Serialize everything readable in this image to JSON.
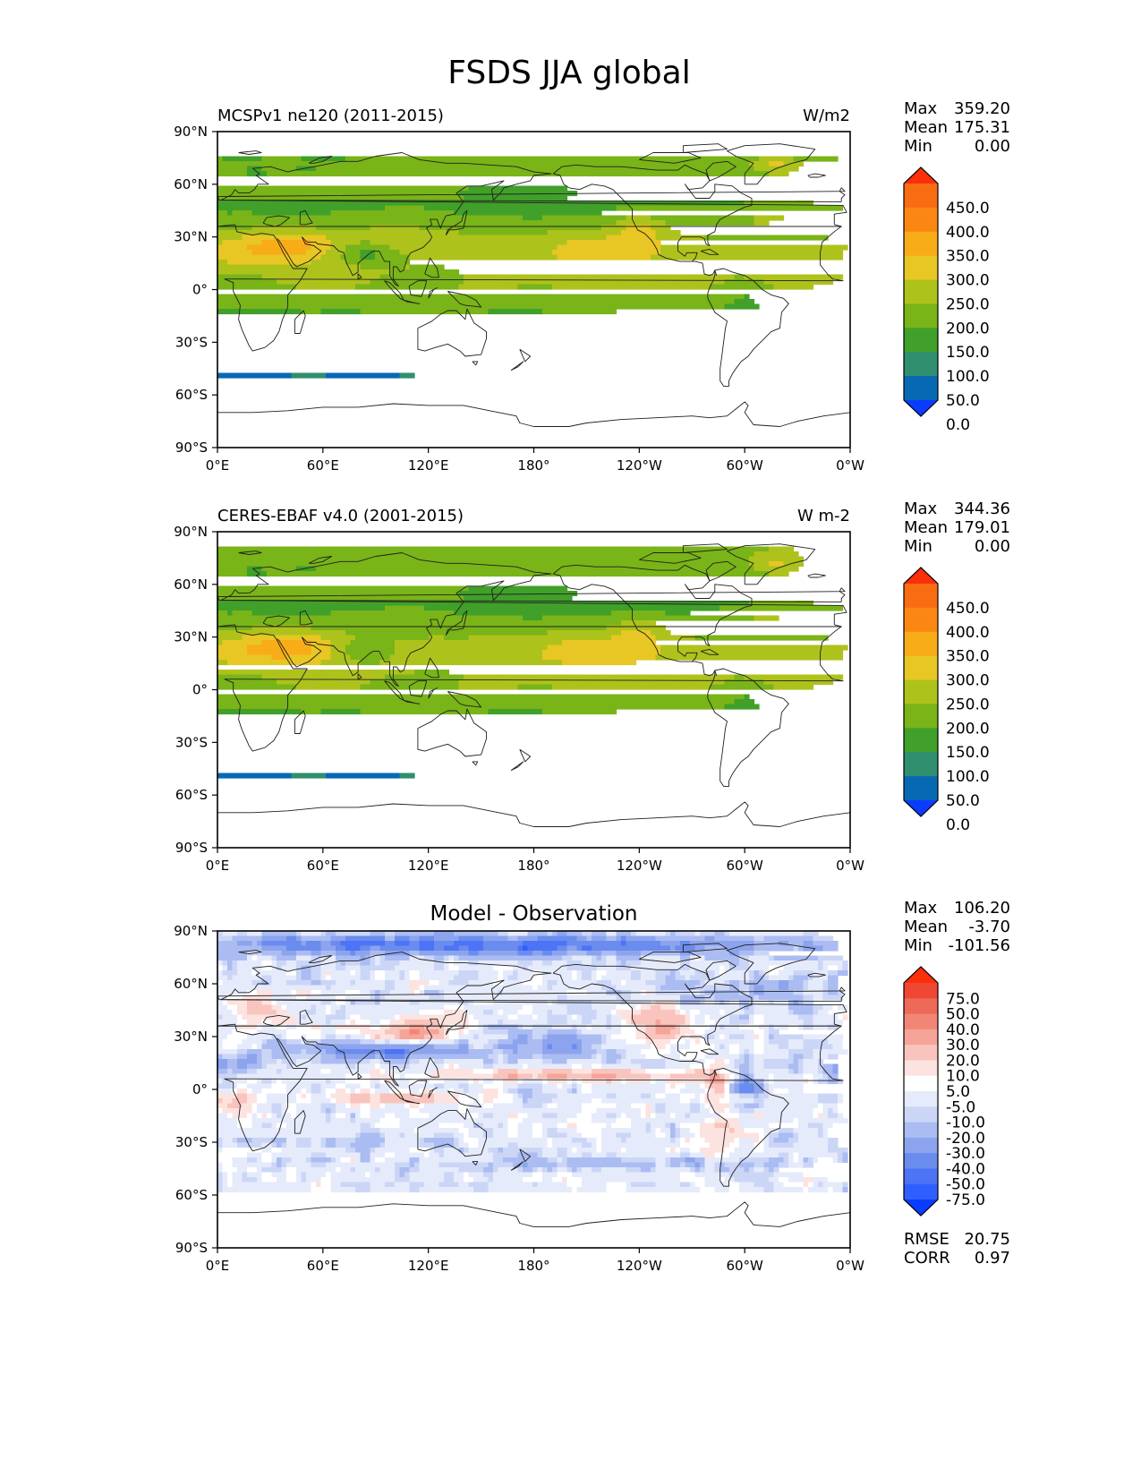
{
  "figure": {
    "title": "FSDS JJA global"
  },
  "colors": {
    "seq": [
      "#0a3cff",
      "#0768b4",
      "#2f8f6f",
      "#40a02a",
      "#79b418",
      "#aec21c",
      "#e8c623",
      "#f8ac18",
      "#fb8712",
      "#f96d12",
      "#fc2f0b"
    ],
    "diff": [
      "#0a3cff",
      "#2f5fff",
      "#4d74f6",
      "#6a8cee",
      "#8ca4ee",
      "#abbcf3",
      "#cbd6f7",
      "#e6ebfb",
      "#ffffff",
      "#fce3e0",
      "#f9c4bd",
      "#f6a497",
      "#f28676",
      "#ee6958",
      "#f04634",
      "#fc2f0b"
    ]
  },
  "axes": {
    "x_ticks": [
      "0°E",
      "60°E",
      "120°E",
      "180°",
      "120°W",
      "60°W",
      "0°W"
    ],
    "y_ticks": [
      "90°N",
      "60°N",
      "30°N",
      "0°",
      "30°S",
      "60°S",
      "90°S"
    ]
  },
  "chart_data": [
    {
      "type": "heatmap",
      "title_left": "MCSPv1 ne120 (2011-2015)",
      "title_right": "W/m2",
      "stats": [
        {
          "label": "Max",
          "value": "359.20"
        },
        {
          "label": "Mean",
          "value": "175.31"
        },
        {
          "label": "Min",
          "value": "0.00"
        }
      ],
      "colorbar": {
        "levels": [
          0,
          50,
          100,
          150,
          200,
          250,
          300,
          350,
          400,
          450
        ],
        "tick_labels": [
          "450.0",
          "400.0",
          "350.0",
          "300.0",
          "250.0",
          "200.0",
          "150.0",
          "100.0",
          "50.0",
          "0.0"
        ]
      },
      "field": "model"
    },
    {
      "type": "heatmap",
      "title_left": "CERES-EBAF v4.0 (2001-2015)",
      "title_right": "W m-2",
      "stats": [
        {
          "label": "Max",
          "value": "344.36"
        },
        {
          "label": "Mean",
          "value": "179.01"
        },
        {
          "label": "Min",
          "value": "0.00"
        }
      ],
      "colorbar": {
        "levels": [
          0,
          50,
          100,
          150,
          200,
          250,
          300,
          350,
          400,
          450
        ],
        "tick_labels": [
          "450.0",
          "400.0",
          "350.0",
          "300.0",
          "250.0",
          "200.0",
          "150.0",
          "100.0",
          "50.0",
          "0.0"
        ]
      },
      "field": "obs"
    },
    {
      "type": "heatmap",
      "title_center": "Model - Observation",
      "stats": [
        {
          "label": "Max",
          "value": "106.20"
        },
        {
          "label": "Mean",
          "value": "-3.70"
        },
        {
          "label": "Min",
          "value": "-101.56"
        }
      ],
      "colorbar": {
        "levels": [
          -75,
          -50,
          -40,
          -30,
          -20,
          -10,
          -5,
          5,
          10,
          20,
          30,
          40,
          50,
          75
        ],
        "tick_labels": [
          "75.0",
          "50.0",
          "40.0",
          "30.0",
          "20.0",
          "10.0",
          "5.0",
          "-5.0",
          "-10.0",
          "-20.0",
          "-30.0",
          "-40.0",
          "-50.0",
          "-75.0"
        ]
      },
      "metrics": [
        {
          "label": "RMSE",
          "value": "20.75"
        },
        {
          "label": "CORR",
          "value": "0.97"
        }
      ],
      "field": "diff"
    }
  ]
}
